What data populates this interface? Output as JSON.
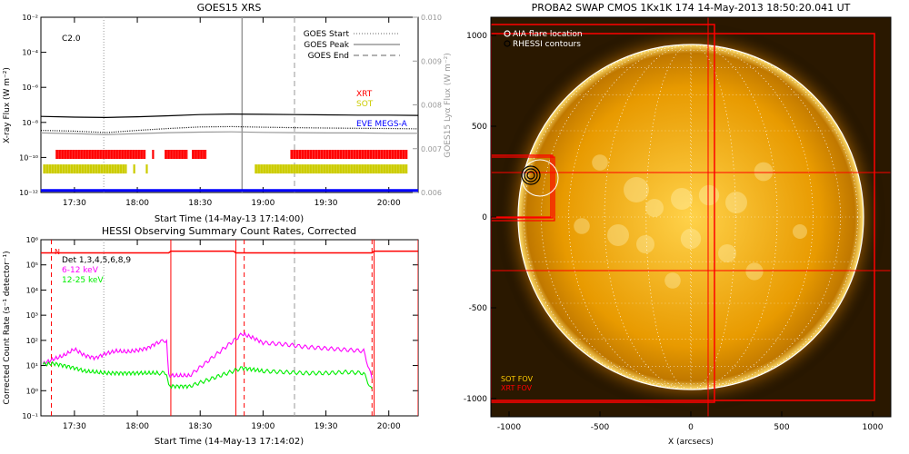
{
  "chart_data": [
    {
      "type": "line",
      "title": "GOES15 XRS",
      "xlabel": "Start Time (14-May-13 17:14:00)",
      "ylabel": "X-ray Flux (W m⁻²)",
      "y2label": "GOES15 Lyα Flux (W m⁻²)",
      "xticks": [
        "17:30",
        "18:00",
        "18:30",
        "19:00",
        "19:30",
        "20:00"
      ],
      "xlim": [
        "17:14",
        "20:14"
      ],
      "yscale": "log",
      "ylim": [
        1e-12,
        0.01
      ],
      "yticks": [
        "10⁻¹²",
        "10⁻¹⁰",
        "10⁻⁸",
        "10⁻⁶",
        "10⁻⁴",
        "10⁻²"
      ],
      "y2lim": [
        0.006,
        0.01
      ],
      "y2ticks": [
        "0.006",
        "0.007",
        "0.008",
        "0.009",
        "0.010"
      ],
      "class_label": "C2.0",
      "legend_top": [
        {
          "label": "GOES Start",
          "style": "dotted",
          "color": "#999999"
        },
        {
          "label": "GOES Peak",
          "style": "solid",
          "color": "#999999"
        },
        {
          "label": "GOES End",
          "style": "dashed",
          "color": "#999999"
        }
      ],
      "legend_bottom": [
        {
          "label": "XRT",
          "color": "#ff0000"
        },
        {
          "label": "SOT",
          "color": "#cccc00"
        },
        {
          "label": "EVE MEGS-A",
          "color": "#0000ff"
        }
      ],
      "event_lines": {
        "start": "17:44",
        "peak": "18:50",
        "end": "19:15"
      },
      "series": [
        {
          "color": "#000000",
          "x": [
            "17:14",
            "17:30",
            "17:45",
            "18:00",
            "18:15",
            "18:30",
            "18:45",
            "19:00",
            "19:15",
            "19:30",
            "19:45",
            "20:00",
            "20:14"
          ],
          "y": [
            2.2e-08,
            2e-08,
            1.9e-08,
            2.1e-08,
            2.4e-08,
            2.8e-08,
            3e-08,
            2.9e-08,
            2.8e-08,
            2.7e-08,
            2.6e-08,
            2.6e-08,
            2.5e-08
          ]
        },
        {
          "color": "#000000",
          "style": "dotted",
          "x": [
            "17:14",
            "17:30",
            "17:45",
            "18:00",
            "18:15",
            "18:30",
            "18:45",
            "19:00",
            "19:15",
            "19:30",
            "19:45",
            "20:00",
            "20:14"
          ],
          "y": [
            3.5e-09,
            3.2e-09,
            2.6e-09,
            3.5e-09,
            4.5e-09,
            5.5e-09,
            5.8e-09,
            5.3e-09,
            5e-09,
            4.8e-09,
            4.6e-09,
            4.5e-09,
            4.3e-09
          ]
        },
        {
          "color": "#999999",
          "x": [
            "17:14",
            "17:30",
            "17:45",
            "18:00",
            "18:15",
            "18:30",
            "18:45",
            "19:00",
            "19:15",
            "19:30",
            "19:45",
            "20:00",
            "20:14"
          ],
          "y": [
            2.5e-09,
            2.3e-09,
            2e-09,
            2.3e-09,
            2.6e-09,
            2.8e-09,
            2.9e-09,
            2.7e-09,
            2.6e-09,
            2.5e-09,
            2.5e-09,
            2.4e-09,
            2.4e-09
          ]
        },
        {
          "color": "#0000ff",
          "x": [
            "17:14",
            "20:14"
          ],
          "y": [
            1.3e-12,
            1.3e-12
          ]
        }
      ],
      "coverage": [
        {
          "instrument": "XRT",
          "color": "#ff0000",
          "y": 1.5e-10,
          "intervals": [
            [
              "17:21",
              "18:04"
            ],
            [
              "18:07",
              "18:08"
            ],
            [
              "18:13",
              "18:24"
            ],
            [
              "18:26",
              "18:33"
            ],
            [
              "19:13",
              "20:09"
            ]
          ]
        },
        {
          "instrument": "SOT",
          "color": "#cccc00",
          "y": 2.2e-11,
          "intervals": [
            [
              "17:15",
              "17:55"
            ],
            [
              "17:58",
              "17:59"
            ],
            [
              "18:04",
              "18:05"
            ],
            [
              "18:56",
              "20:09"
            ]
          ]
        }
      ]
    },
    {
      "type": "line",
      "title": "HESSI Observing Summary Count Rates, Corrected",
      "xlabel": "Start Time (14-May-13 17:14:02)",
      "ylabel": "Corrected Count Rate (s⁻¹ detector⁻¹)",
      "xticks": [
        "17:30",
        "18:00",
        "18:30",
        "19:00",
        "19:30",
        "20:00"
      ],
      "xlim": [
        "17:14",
        "20:14"
      ],
      "yscale": "log",
      "ylim": [
        0.1,
        1000000.0
      ],
      "yticks": [
        "10⁻¹",
        "10⁰",
        "10¹",
        "10²",
        "10³",
        "10⁴",
        "10⁵",
        "10⁶"
      ],
      "flag_label": "N",
      "legend": [
        {
          "label": "Det 1,3,4,5,6,8,9",
          "color": "#000000"
        },
        {
          "label": "6-12 keV",
          "color": "#ff00ff"
        },
        {
          "label": "12-25 keV",
          "color": "#00ee00"
        }
      ],
      "event_lines": {
        "start": "17:44",
        "end": "19:15"
      },
      "night_intervals": [
        [
          "18:16",
          "18:47"
        ],
        [
          "19:53",
          "20:14"
        ]
      ],
      "saa_dashed": [
        "17:19",
        "18:51",
        "19:52"
      ],
      "series": [
        {
          "name": "6-12 keV",
          "color": "#ff00ff",
          "x": [
            "17:15",
            "17:20",
            "17:25",
            "17:30",
            "17:35",
            "17:40",
            "17:45",
            "17:50",
            "17:55",
            "18:00",
            "18:05",
            "18:10",
            "18:14",
            "18:15",
            "18:20",
            "18:25",
            "18:50",
            "18:55",
            "19:00",
            "19:10",
            "19:20",
            "19:30",
            "19:40",
            "19:48",
            "19:52"
          ],
          "y": [
            12,
            18,
            25,
            45,
            25,
            20,
            30,
            38,
            35,
            40,
            50,
            85,
            100,
            4,
            4,
            4,
            180,
            130,
            80,
            70,
            55,
            48,
            42,
            38,
            3
          ]
        },
        {
          "name": "12-25 keV",
          "color": "#00ee00",
          "x": [
            "17:15",
            "17:20",
            "17:25",
            "17:30",
            "17:35",
            "17:40",
            "17:45",
            "17:50",
            "17:55",
            "18:00",
            "18:05",
            "18:10",
            "18:14",
            "18:15",
            "18:20",
            "18:25",
            "18:50",
            "18:55",
            "19:00",
            "19:10",
            "19:20",
            "19:30",
            "19:40",
            "19:48",
            "19:52"
          ],
          "y": [
            11,
            12,
            10,
            8,
            6,
            5.5,
            5,
            5,
            5,
            5,
            5,
            5,
            5,
            1.5,
            1.5,
            1.5,
            8,
            7,
            6,
            5.5,
            5,
            5,
            5.5,
            5,
            1
          ]
        },
        {
          "name": "Attenuator",
          "color": "#ff0000",
          "x": [
            "17:14",
            "18:15",
            "18:16",
            "18:46",
            "18:47",
            "19:52",
            "19:53",
            "20:14"
          ],
          "y": [
            300000.0,
            300000.0,
            350000.0,
            350000.0,
            300000.0,
            300000.0,
            350000.0,
            350000.0
          ]
        }
      ]
    },
    {
      "type": "image",
      "title": "PROBA2 SWAP CMOS 1Kx1K 174 14-May-2013 18:50:20.041 UT",
      "xlabel": "X (arcsecs)",
      "ylabel": "",
      "xlim": [
        -1100,
        1100
      ],
      "ylim": [
        -1100,
        1100
      ],
      "xticks": [
        "-1000",
        "-500",
        "0",
        "500",
        "1000"
      ],
      "yticks": [
        "-1000",
        "-500",
        "0",
        "500",
        "1000"
      ],
      "legend": [
        {
          "label": "AIA flare location",
          "marker": "circle",
          "color": "#ffffff"
        },
        {
          "label": "RHESSI contours",
          "marker": "circle",
          "color": "#000000"
        }
      ],
      "fov_labels": [
        {
          "label": "SOT FOV",
          "color": "#ffcc00"
        },
        {
          "label": "XRT FOV",
          "color": "#ff0000"
        }
      ],
      "flare_location": [
        -880,
        230
      ],
      "xrt_fov": [
        [
          -1100,
          -1010,
          1010,
          1010
        ],
        [
          -1100,
          -1020,
          130,
          1060
        ]
      ],
      "sot_fov": [
        [
          -1100,
          -5,
          -760,
          340
        ],
        [
          -1100,
          0,
          -770,
          340
        ],
        [
          -1100,
          -20,
          -750,
          330
        ]
      ],
      "xrt_lines": {
        "h": [
          245,
          -295
        ],
        "v": [
          95
        ]
      },
      "solar_radius_arcsec": 950
    }
  ]
}
